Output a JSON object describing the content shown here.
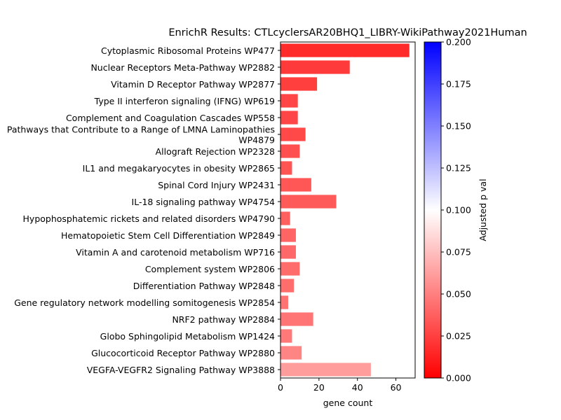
{
  "chart_data": {
    "type": "bar",
    "orientation": "horizontal",
    "title": "EnrichR Results: CTLcyclersAR20BHQ1_LIBRY-WikiPathway2021Human",
    "xlabel": "gene count",
    "ylabel": "",
    "xlim": [
      0,
      70
    ],
    "xticks": [
      "0",
      "20",
      "40",
      "60"
    ],
    "categories": [
      "Cytoplasmic Ribosomal Proteins WP477",
      "Nuclear Receptors Meta-Pathway WP2882",
      "Vitamin D Receptor Pathway WP2877",
      "Type II interferon signaling (IFNG) WP619",
      "Complement and Coagulation Cascades WP558",
      "Pathways that Contribute to a Range of LMNA Laminopathies WP4879",
      "Allograft Rejection WP2328",
      "IL1 and megakaryocytes in obesity WP2865",
      "Spinal Cord Injury WP2431",
      "IL-18 signaling pathway WP4754",
      "Hypophosphatemic rickets and related disorders WP4790",
      "Hematopoietic Stem Cell Differentiation WP2849",
      "Vitamin A and carotenoid metabolism WP716",
      "Complement system WP2806",
      "Differentiation Pathway WP2848",
      "Gene regulatory network modelling somitogenesis  WP2854",
      "NRF2 pathway WP2884",
      "Globo Sphingolipid Metabolism WP1424",
      "Glucocorticoid Receptor Pathway WP2880",
      "VEGFA-VEGFR2 Signaling Pathway WP3888"
    ],
    "label_lines": [
      [
        "Cytoplasmic Ribosomal Proteins WP477"
      ],
      [
        "Nuclear Receptors Meta-Pathway WP2882"
      ],
      [
        "Vitamin D Receptor Pathway WP2877"
      ],
      [
        "Type II interferon signaling (IFNG) WP619"
      ],
      [
        "Complement and Coagulation Cascades WP558"
      ],
      [
        "Pathways that Contribute to a Range of LMNA Laminopathies",
        "WP4879"
      ],
      [
        "Allograft Rejection WP2328"
      ],
      [
        "IL1 and megakaryocytes in obesity WP2865"
      ],
      [
        "Spinal Cord Injury WP2431"
      ],
      [
        "IL-18 signaling pathway WP4754"
      ],
      [
        "Hypophosphatemic rickets and related disorders WP4790"
      ],
      [
        "Hematopoietic Stem Cell Differentiation WP2849"
      ],
      [
        "Vitamin A and carotenoid metabolism WP716"
      ],
      [
        "Complement system WP2806"
      ],
      [
        "Differentiation Pathway WP2848"
      ],
      [
        "Gene regulatory network modelling somitogenesis  WP2854"
      ],
      [
        "NRF2 pathway WP2884"
      ],
      [
        "Globo Sphingolipid Metabolism WP1424"
      ],
      [
        "Glucocorticoid Receptor Pathway WP2880"
      ],
      [
        "VEGFA-VEGFR2 Signaling Pathway WP3888"
      ]
    ],
    "values": [
      67,
      36,
      19,
      9,
      9,
      13,
      10,
      6,
      16,
      29,
      5,
      8,
      8,
      10,
      7,
      4,
      17,
      6,
      11,
      47
    ],
    "adjusted_p": [
      0.002,
      0.009,
      0.011,
      0.014,
      0.015,
      0.016,
      0.019,
      0.021,
      0.022,
      0.024,
      0.027,
      0.029,
      0.03,
      0.032,
      0.033,
      0.035,
      0.036,
      0.038,
      0.043,
      0.055
    ],
    "colorbar": {
      "label": "Adjusted p val",
      "range": [
        0,
        0.2
      ],
      "ticks": [
        "0.000",
        "0.025",
        "0.050",
        "0.075",
        "0.100",
        "0.125",
        "0.150",
        "0.175",
        "0.200"
      ],
      "colors": [
        "#ff0000",
        "#ffffff",
        "#0000ff"
      ]
    },
    "grid": false,
    "legend": "none"
  }
}
